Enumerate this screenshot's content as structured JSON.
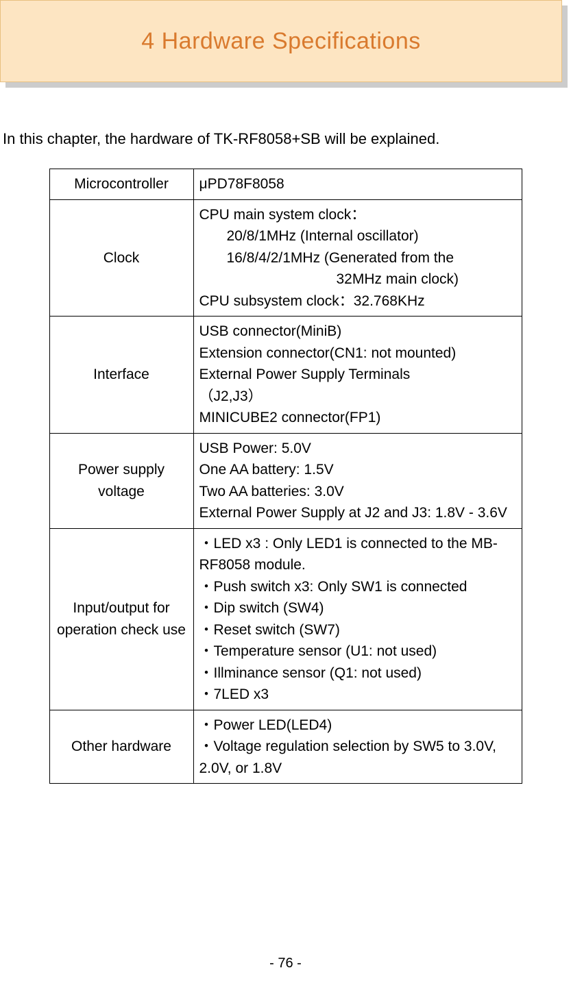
{
  "header": {
    "title": "4   Hardware Specifications"
  },
  "intro": "In this chapter, the hardware of TK-RF8058+SB will be explained.",
  "table": {
    "rows": [
      {
        "label": "Microcontroller",
        "value_lines": [
          "μPD78F8058"
        ]
      },
      {
        "label": "Clock",
        "value_lines": [
          "CPU main system clock：",
          {
            "text": "20/8/1MHz (Internal oscillator)",
            "indent": 1
          },
          {
            "text": "16/8/4/2/1MHz (Generated from the",
            "indent": 1
          },
          {
            "text": "32MHz main clock)",
            "indent": 2
          },
          "CPU subsystem clock：32.768KHz"
        ]
      },
      {
        "label": "Interface",
        "value_lines": [
          "USB connector(MiniB)",
          "Extension connector(CN1: not mounted)",
          "External Power Supply Terminals",
          "（J2,J3）",
          "MINICUBE2 connector(FP1)"
        ]
      },
      {
        "label": "Power supply voltage",
        "value_lines": [
          "USB Power: 5.0V",
          "One AA battery: 1.5V",
          "Two AA batteries: 3.0V",
          "External Power Supply at J2 and J3: 1.8V - 3.6V"
        ]
      },
      {
        "label": "Input/output for operation check use",
        "value_lines": [
          "・LED x3 : Only LED1 is connected to the MB-RF8058 module.",
          "・Push switch x3: Only SW1 is connected",
          "・Dip switch (SW4)",
          "・Reset switch (SW7)",
          "・Temperature sensor (U1: not used)",
          "・Illminance sensor (Q1: not used)",
          "・7LED x3"
        ]
      },
      {
        "label": "Other hardware",
        "value_lines": [
          "・Power LED(LED4)",
          "・Voltage regulation selection by SW5 to 3.0V, 2.0V, or 1.8V"
        ]
      }
    ]
  },
  "page_number": "- 76 -",
  "colors": {
    "header_bg": "#fde5c2",
    "header_border": "#e8c080",
    "header_text": "#d97a2e",
    "shadow": "#cccccc"
  }
}
